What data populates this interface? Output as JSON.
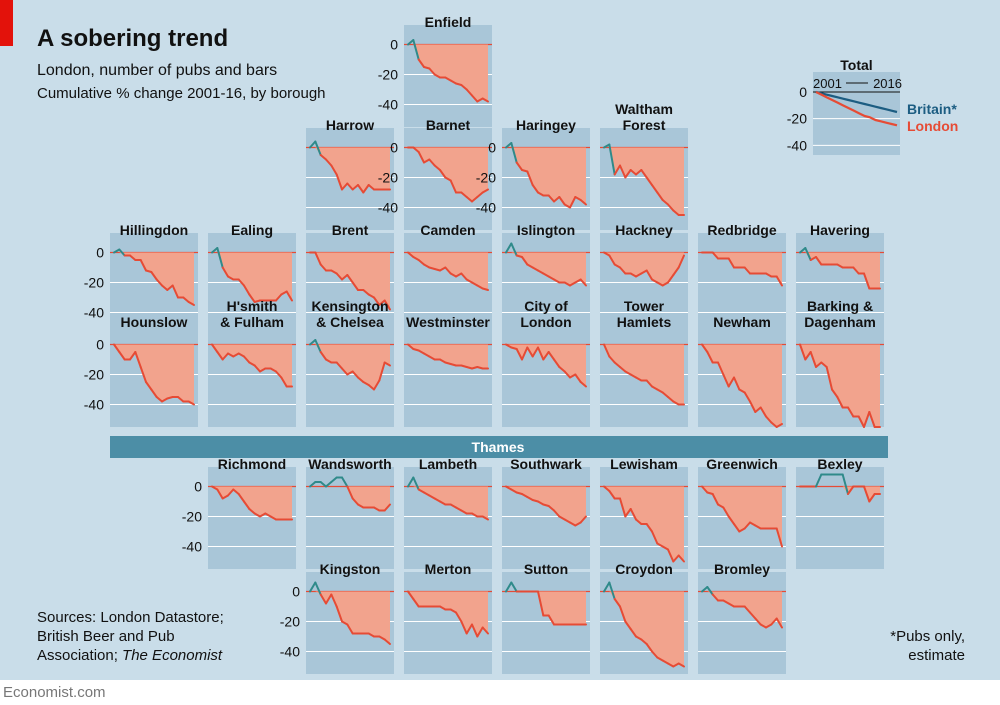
{
  "header": {
    "title": "A sobering trend",
    "subtitle": "London, number of pubs and bars",
    "subsubtitle": "Cumulative % change 2001-16, by borough"
  },
  "footer": {
    "sources_line1": "Sources: London Datastore;",
    "sources_line2": "British Beer and Pub",
    "sources_line3_prefix": "Association; ",
    "sources_line3_italic": "The Economist",
    "note_line1": "*Pubs only,",
    "note_line2": "estimate",
    "brand": "Economist.com"
  },
  "river_label": "Thames",
  "colors": {
    "background": "#c9dde9",
    "panel": "#a9c6d8",
    "fill": "#f2a38d",
    "line_neg": "#e64b35",
    "line_pos": "#2f8a8a",
    "britain": "#1c5d82",
    "river": "#4c8ea6",
    "accent": "#e3120b"
  },
  "chart_data": {
    "type": "area",
    "title": "A sobering trend",
    "subtitle": "London, number of pubs and bars — Cumulative % change 2001-16, by borough",
    "x_range": [
      2001,
      2016
    ],
    "ylim": [
      -55,
      5
    ],
    "yticks": [
      0,
      -20,
      -40
    ],
    "ytick_labels": [
      "0",
      "-20",
      "-40"
    ],
    "total_panel": {
      "title": "Total",
      "x_start_label": "2001",
      "x_end_label": "2016",
      "legend": [
        "Britain*",
        "London"
      ],
      "series": [
        {
          "name": "Britain*",
          "values": [
            0,
            -1,
            -2,
            -3,
            -4,
            -5,
            -6,
            -7,
            -8,
            -9,
            -10,
            -11,
            -12,
            -13,
            -14,
            -15
          ]
        },
        {
          "name": "London",
          "values": [
            0,
            -2,
            -4,
            -6,
            -8,
            -10,
            -12,
            -14,
            -16,
            -18,
            -19,
            -21,
            -22,
            -23,
            -24,
            -25
          ]
        }
      ]
    },
    "boroughs": [
      {
        "name": "Enfield",
        "label": [
          "Enfield"
        ],
        "values": [
          0,
          3,
          -10,
          -15,
          -16,
          -20,
          -22,
          -22,
          -24,
          -26,
          -27,
          -30,
          -34,
          -38,
          -36,
          -38
        ]
      },
      {
        "name": "Harrow",
        "label": [
          "Harrow"
        ],
        "values": [
          0,
          4,
          -5,
          -8,
          -12,
          -18,
          -28,
          -24,
          -28,
          -25,
          -30,
          -25,
          -28,
          -28,
          -28,
          -28
        ]
      },
      {
        "name": "Barnet",
        "label": [
          "Barnet"
        ],
        "values": [
          0,
          0,
          -3,
          -10,
          -8,
          -12,
          -15,
          -20,
          -22,
          -30,
          -30,
          -33,
          -36,
          -33,
          -30,
          -28
        ]
      },
      {
        "name": "Haringey",
        "label": [
          "Haringey"
        ],
        "values": [
          0,
          3,
          -10,
          -15,
          -16,
          -25,
          -30,
          -32,
          -32,
          -36,
          -33,
          -38,
          -40,
          -33,
          -35,
          -38
        ]
      },
      {
        "name": "Waltham Forest",
        "label": [
          "Waltham",
          "Forest"
        ],
        "values": [
          0,
          2,
          -18,
          -12,
          -20,
          -15,
          -18,
          -15,
          -20,
          -25,
          -30,
          -35,
          -38,
          -42,
          -45,
          -45
        ]
      },
      {
        "name": "Hillingdon",
        "label": [
          "Hillingdon"
        ],
        "values": [
          0,
          2,
          -2,
          -2,
          -5,
          -5,
          -12,
          -13,
          -18,
          -22,
          -25,
          -22,
          -30,
          -30,
          -33,
          -35
        ]
      },
      {
        "name": "Ealing",
        "label": [
          "Ealing"
        ],
        "values": [
          0,
          3,
          -10,
          -16,
          -18,
          -18,
          -22,
          -28,
          -33,
          -32,
          -32,
          -32,
          -32,
          -28,
          -26,
          -32
        ]
      },
      {
        "name": "Brent",
        "label": [
          "Brent"
        ],
        "values": [
          0,
          0,
          -8,
          -12,
          -12,
          -14,
          -18,
          -15,
          -20,
          -25,
          -25,
          -28,
          -30,
          -35,
          -32,
          -38
        ]
      },
      {
        "name": "Camden",
        "label": [
          "Camden"
        ],
        "values": [
          0,
          -3,
          -5,
          -8,
          -10,
          -11,
          -12,
          -10,
          -14,
          -16,
          -14,
          -18,
          -20,
          -22,
          -24,
          -25
        ]
      },
      {
        "name": "Islington",
        "label": [
          "Islington"
        ],
        "values": [
          0,
          6,
          -2,
          -3,
          -8,
          -10,
          -12,
          -14,
          -16,
          -18,
          -20,
          -20,
          -22,
          -20,
          -18,
          -22
        ]
      },
      {
        "name": "Hackney",
        "label": [
          "Hackney"
        ],
        "values": [
          0,
          -2,
          -8,
          -10,
          -14,
          -14,
          -16,
          -14,
          -12,
          -18,
          -20,
          -22,
          -20,
          -15,
          -10,
          -2
        ]
      },
      {
        "name": "Redbridge",
        "label": [
          "Redbridge"
        ],
        "values": [
          0,
          0,
          0,
          -4,
          -4,
          -4,
          -10,
          -10,
          -10,
          -14,
          -14,
          -14,
          -14,
          -16,
          -16,
          -22
        ]
      },
      {
        "name": "Havering",
        "label": [
          "Havering"
        ],
        "values": [
          0,
          3,
          -5,
          -3,
          -8,
          -8,
          -8,
          -8,
          -10,
          -10,
          -10,
          -14,
          -14,
          -24,
          -24,
          -24
        ]
      },
      {
        "name": "Hounslow",
        "label": [
          "Hounslow"
        ],
        "values": [
          0,
          -5,
          -10,
          -10,
          -5,
          -15,
          -25,
          -30,
          -35,
          -38,
          -36,
          -35,
          -35,
          -38,
          -38,
          -40
        ]
      },
      {
        "name": "H'smith & Fulham",
        "label": [
          "H'smith",
          "& Fulham"
        ],
        "values": [
          0,
          -5,
          -10,
          -6,
          -8,
          -6,
          -8,
          -12,
          -14,
          -18,
          -16,
          -16,
          -18,
          -22,
          -28,
          -28
        ]
      },
      {
        "name": "Kensington & Chelsea",
        "label": [
          "Kensington",
          "& Chelsea"
        ],
        "values": [
          0,
          3,
          -5,
          -10,
          -12,
          -12,
          -16,
          -20,
          -18,
          -22,
          -25,
          -27,
          -30,
          -24,
          -12,
          -14
        ]
      },
      {
        "name": "Westminster",
        "label": [
          "Westminster"
        ],
        "values": [
          0,
          -3,
          -4,
          -6,
          -8,
          -10,
          -10,
          -12,
          -13,
          -14,
          -14,
          -15,
          -16,
          -15,
          -16,
          -16
        ]
      },
      {
        "name": "City of London",
        "label": [
          "City of",
          "London"
        ],
        "values": [
          0,
          -2,
          -3,
          -10,
          -2,
          -8,
          -2,
          -10,
          -5,
          -10,
          -15,
          -18,
          -22,
          -20,
          -25,
          -28
        ]
      },
      {
        "name": "Tower Hamlets",
        "label": [
          "Tower",
          "Hamlets"
        ],
        "values": [
          0,
          -8,
          -12,
          -15,
          -18,
          -20,
          -22,
          -24,
          -24,
          -28,
          -30,
          -32,
          -35,
          -38,
          -40,
          -40
        ]
      },
      {
        "name": "Newham",
        "label": [
          "Newham"
        ],
        "values": [
          0,
          -5,
          -12,
          -12,
          -20,
          -28,
          -22,
          -30,
          -32,
          -38,
          -45,
          -42,
          -48,
          -52,
          -55,
          -53
        ]
      },
      {
        "name": "Barking & Dagenham",
        "label": [
          "Barking &",
          "Dagenham"
        ],
        "values": [
          0,
          -10,
          -5,
          -15,
          -12,
          -15,
          -30,
          -35,
          -42,
          -42,
          -48,
          -48,
          -55,
          -45,
          -55,
          -55
        ]
      },
      {
        "name": "Richmond",
        "label": [
          "Richmond"
        ],
        "values": [
          0,
          -2,
          -8,
          -6,
          -2,
          -5,
          -10,
          -15,
          -18,
          -20,
          -18,
          -20,
          -22,
          -22,
          -22,
          -22
        ]
      },
      {
        "name": "Wandsworth",
        "label": [
          "Wandsworth"
        ],
        "values": [
          0,
          3,
          3,
          0,
          3,
          6,
          6,
          0,
          -8,
          -12,
          -14,
          -14,
          -14,
          -16,
          -16,
          -12
        ]
      },
      {
        "name": "Lambeth",
        "label": [
          "Lambeth"
        ],
        "values": [
          0,
          6,
          -2,
          -4,
          -6,
          -8,
          -10,
          -12,
          -12,
          -14,
          -16,
          -18,
          -18,
          -20,
          -20,
          -22
        ]
      },
      {
        "name": "Southwark",
        "label": [
          "Southwark"
        ],
        "values": [
          0,
          -2,
          -4,
          -5,
          -7,
          -9,
          -10,
          -12,
          -13,
          -16,
          -20,
          -22,
          -24,
          -26,
          -24,
          -20
        ]
      },
      {
        "name": "Lewisham",
        "label": [
          "Lewisham"
        ],
        "values": [
          0,
          -3,
          -8,
          -8,
          -20,
          -15,
          -22,
          -25,
          -25,
          -30,
          -38,
          -40,
          -42,
          -50,
          -46,
          -50
        ]
      },
      {
        "name": "Greenwich",
        "label": [
          "Greenwich"
        ],
        "values": [
          0,
          -4,
          -5,
          -12,
          -14,
          -20,
          -25,
          -30,
          -28,
          -24,
          -26,
          -28,
          -28,
          -28,
          -28,
          -40
        ]
      },
      {
        "name": "Bexley",
        "label": [
          "Bexley"
        ],
        "values": [
          0,
          0,
          0,
          0,
          8,
          8,
          8,
          8,
          8,
          -5,
          0,
          0,
          0,
          -10,
          -5,
          -5
        ]
      },
      {
        "name": "Kingston",
        "label": [
          "Kingston"
        ],
        "values": [
          0,
          6,
          -2,
          -8,
          -2,
          -10,
          -20,
          -22,
          -28,
          -28,
          -28,
          -28,
          -30,
          -30,
          -32,
          -35
        ]
      },
      {
        "name": "Merton",
        "label": [
          "Merton"
        ],
        "values": [
          0,
          -5,
          -10,
          -10,
          -10,
          -10,
          -10,
          -12,
          -12,
          -14,
          -20,
          -28,
          -22,
          -30,
          -24,
          -28
        ]
      },
      {
        "name": "Sutton",
        "label": [
          "Sutton"
        ],
        "values": [
          0,
          6,
          0,
          0,
          0,
          0,
          0,
          -16,
          -16,
          -22,
          -22,
          -22,
          -22,
          -22,
          -22,
          -22
        ]
      },
      {
        "name": "Croydon",
        "label": [
          "Croydon"
        ],
        "values": [
          0,
          6,
          -5,
          -10,
          -20,
          -25,
          -30,
          -32,
          -35,
          -40,
          -44,
          -46,
          -48,
          -50,
          -48,
          -50
        ]
      },
      {
        "name": "Bromley",
        "label": [
          "Bromley"
        ],
        "values": [
          0,
          3,
          -2,
          -6,
          -6,
          -8,
          -10,
          -10,
          -10,
          -14,
          -18,
          -22,
          -24,
          -22,
          -18,
          -24
        ]
      }
    ]
  }
}
